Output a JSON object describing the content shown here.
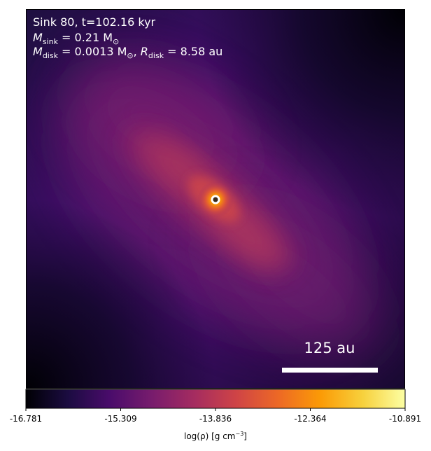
{
  "annotation": {
    "line1": "Sink 80, t=102.16 kyr",
    "msink_symbol": "M",
    "msink_sub": "sink",
    "msink_value": " = 0.21 M",
    "msink_unit_sub": "⊙",
    "mdisk_symbol": "M",
    "mdisk_sub": "disk",
    "mdisk_value": " = 0.0013 M",
    "mdisk_unit_sub": "⊙",
    "rdisk_sep": ", ",
    "rdisk_symbol": "R",
    "rdisk_sub": "disk",
    "rdisk_value": " = 8.58 au"
  },
  "scale_bar": {
    "label": "125 au",
    "color": "#ffffff"
  },
  "sink": {
    "ring_color": "#ffffff",
    "core_color": "#3a2a1a"
  },
  "colorbar": {
    "colormap": "inferno-like",
    "stops": [
      "#000004",
      "#1b0c41",
      "#4a0c6b",
      "#781c6d",
      "#a52c60",
      "#cf4446",
      "#ed6925",
      "#fb9b06",
      "#f7d13d",
      "#fcffa4"
    ],
    "ticks": [
      "-16.781",
      "-15.309",
      "-13.836",
      "-12.364",
      "-10.891"
    ],
    "label_prefix": "log(ρ) [g cm",
    "label_exp": "−3",
    "label_suffix": "]"
  }
}
